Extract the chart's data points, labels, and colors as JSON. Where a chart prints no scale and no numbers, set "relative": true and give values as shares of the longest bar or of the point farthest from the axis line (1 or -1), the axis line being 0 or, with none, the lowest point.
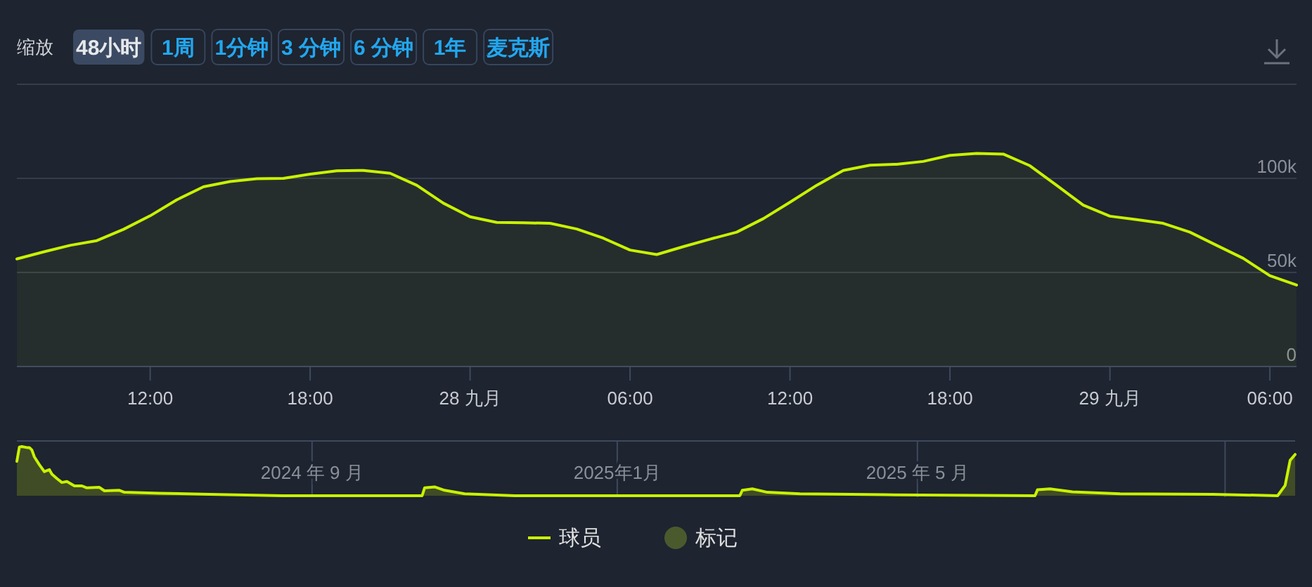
{
  "chart_data": [
    {
      "type": "area",
      "x": [
        "2025-09-27T07:00",
        "2025-09-27T08:00",
        "2025-09-27T09:00",
        "2025-09-27T10:00",
        "2025-09-27T11:00",
        "2025-09-27T12:00",
        "2025-09-27T13:00",
        "2025-09-27T14:00",
        "2025-09-27T15:00",
        "2025-09-27T16:00",
        "2025-09-27T17:00",
        "2025-09-27T18:00",
        "2025-09-27T19:00",
        "2025-09-27T20:00",
        "2025-09-27T21:00",
        "2025-09-27T22:00",
        "2025-09-27T23:00",
        "2025-09-28T00:00",
        "2025-09-28T01:00",
        "2025-09-28T02:00",
        "2025-09-28T03:00",
        "2025-09-28T04:00",
        "2025-09-28T05:00",
        "2025-09-28T06:00",
        "2025-09-28T07:00",
        "2025-09-28T08:00",
        "2025-09-28T09:00",
        "2025-09-28T10:00",
        "2025-09-28T11:00",
        "2025-09-28T12:00",
        "2025-09-28T13:00",
        "2025-09-28T14:00",
        "2025-09-28T15:00",
        "2025-09-28T16:00",
        "2025-09-28T17:00",
        "2025-09-28T18:00",
        "2025-09-28T19:00",
        "2025-09-28T20:00",
        "2025-09-28T21:00",
        "2025-09-28T22:00",
        "2025-09-28T23:00",
        "2025-09-29T00:00",
        "2025-09-29T01:00",
        "2025-09-29T02:00",
        "2025-09-29T03:00",
        "2025-09-29T04:00",
        "2025-09-29T05:00",
        "2025-09-29T06:00",
        "2025-09-29T07:00"
      ],
      "series": [
        {
          "name": "球员",
          "color": "#c9f202",
          "values": [
            57200,
            60900,
            64400,
            66900,
            72900,
            80100,
            88600,
            95500,
            98300,
            99800,
            100000,
            102200,
            104000,
            104200,
            102700,
            96300,
            86800,
            79600,
            76600,
            76400,
            76100,
            73100,
            68200,
            61900,
            59500,
            63700,
            67700,
            71400,
            78600,
            87300,
            96300,
            104200,
            107000,
            107500,
            109000,
            112200,
            113200,
            112900,
            106700,
            96300,
            85800,
            79900,
            78100,
            76100,
            71400,
            64400,
            57500,
            48300,
            43300
          ]
        },
        {
          "name": "标记",
          "type": "scatter",
          "marker": "circle",
          "color": "#4b5a2d",
          "values": [
            null,
            null,
            null,
            null,
            null,
            null,
            null,
            null,
            null,
            null,
            null,
            null,
            null,
            null,
            null,
            null,
            null,
            null,
            null,
            null,
            null,
            null,
            null,
            null,
            null,
            null,
            null,
            null,
            null,
            null,
            null,
            null,
            null,
            null,
            null,
            null,
            null,
            null,
            null,
            null,
            null,
            null,
            null,
            null,
            null,
            null,
            null,
            null,
            null
          ]
        }
      ],
      "xlim": [
        "2025-09-27T07:00",
        "2025-09-29T07:00"
      ],
      "xticks": [
        {
          "value": "2025-09-27T12:00",
          "label": "12:00"
        },
        {
          "value": "2025-09-27T18:00",
          "label": "18:00"
        },
        {
          "value": "2025-09-28T00:00",
          "label": "28 九月"
        },
        {
          "value": "2025-09-28T06:00",
          "label": "06:00"
        },
        {
          "value": "2025-09-28T12:00",
          "label": "12:00"
        },
        {
          "value": "2025-09-28T18:00",
          "label": "18:00"
        },
        {
          "value": "2025-09-29T00:00",
          "label": "29 九月"
        },
        {
          "value": "2025-09-29T06:00",
          "label": "06:00"
        }
      ],
      "ylim": [
        0,
        150000
      ],
      "yticks": [
        0,
        {
          "value": 50000,
          "label": "50k"
        },
        {
          "value": 100000,
          "label": "100k"
        },
        {
          "value": 150000,
          "label": null
        }
      ],
      "grid": "y",
      "legend": "bottom",
      "annotations": [
        "缩放",
        "48小时",
        "1周",
        "1分钟",
        "3 分钟",
        "6 分钟",
        "1年",
        "麦克斯"
      ]
    },
    {
      "type": "area",
      "relative": true,
      "x": [
        "2024-05-06",
        "2024-05-07",
        "2024-05-08",
        "2024-05-10",
        "2024-05-11",
        "2024-05-12",
        "2024-05-13",
        "2024-05-15",
        "2024-05-17",
        "2024-05-19",
        "2024-05-20",
        "2024-05-22",
        "2024-05-24",
        "2024-05-26",
        "2024-05-29",
        "2024-06-01",
        "2024-06-03",
        "2024-06-08",
        "2024-06-10",
        "2024-06-16",
        "2024-06-18",
        "2024-07-02",
        "2024-07-22",
        "2024-08-20",
        "2024-09-26",
        "2024-10-15",
        "2024-10-16",
        "2024-10-20",
        "2024-10-24",
        "2024-11-01",
        "2024-11-21",
        "2024-12-29",
        "2025-02-19",
        "2025-02-20",
        "2025-02-24",
        "2025-03-02",
        "2025-03-15",
        "2025-04-18",
        "2025-06-17",
        "2025-06-18",
        "2025-06-23",
        "2025-07-02",
        "2025-07-21",
        "2025-08-27",
        "2025-09-22",
        "2025-09-25",
        "2025-09-27",
        "2025-09-29"
      ],
      "series": [
        {
          "color": "#c9f202",
          "values": [
            0.7,
            0.99,
            1,
            0.98,
            0.98,
            0.93,
            0.79,
            0.63,
            0.49,
            0.53,
            0.44,
            0.35,
            0.27,
            0.29,
            0.2,
            0.2,
            0.16,
            0.17,
            0.1,
            0.11,
            0.07,
            0.05,
            0.03,
            0,
            0,
            0,
            0.16,
            0.18,
            0.11,
            0.04,
            0,
            0,
            0,
            0.11,
            0.14,
            0.07,
            0.04,
            0.02,
            0,
            0.12,
            0.14,
            0.08,
            0.04,
            0.03,
            0,
            0.21,
            0.72,
            0.84
          ]
        }
      ],
      "xlim": [
        "2024-05-06",
        "2025-09-29"
      ],
      "xticks": [
        {
          "value": "2024-09-01",
          "label": "2024 年 9 月"
        },
        {
          "value": "2025-01-01",
          "label": "2025年1月"
        },
        {
          "value": "2025-05-01",
          "label": "2025 年 5 月"
        },
        {
          "value": "2025-09-01",
          "label": null
        }
      ],
      "grid": "x"
    }
  ]
}
